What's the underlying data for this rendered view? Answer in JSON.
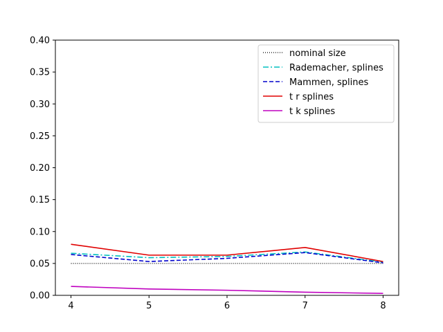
{
  "chart_data": {
    "type": "line",
    "x": [
      4,
      5,
      6,
      7,
      8
    ],
    "xlim": [
      3.8,
      8.2
    ],
    "ylim": [
      0,
      0.4
    ],
    "x_ticks": [
      "4",
      "5",
      "6",
      "7",
      "8"
    ],
    "y_ticks": [
      "0.00",
      "0.05",
      "0.10",
      "0.15",
      "0.20",
      "0.25",
      "0.30",
      "0.35",
      "0.40"
    ],
    "legend_position": "top-right",
    "grid": false,
    "series": [
      {
        "name": "nominal size",
        "color": "#000000",
        "style": "dotted",
        "values": [
          0.05,
          0.05,
          0.05,
          0.05,
          0.05
        ]
      },
      {
        "name": "Rademacher, splines",
        "color": "#00bfbf",
        "style": "dashdot",
        "values": [
          0.066,
          0.059,
          0.061,
          0.068,
          0.052
        ]
      },
      {
        "name": "Mammen, splines",
        "color": "#0000cc",
        "style": "dashed",
        "values": [
          0.064,
          0.053,
          0.058,
          0.067,
          0.051
        ]
      },
      {
        "name": "t r splines",
        "color": "#e00000",
        "style": "solid",
        "values": [
          0.08,
          0.063,
          0.063,
          0.075,
          0.053
        ]
      },
      {
        "name": "t k splines",
        "color": "#bf00bf",
        "style": "solid",
        "values": [
          0.014,
          0.01,
          0.008,
          0.005,
          0.003
        ]
      }
    ]
  }
}
